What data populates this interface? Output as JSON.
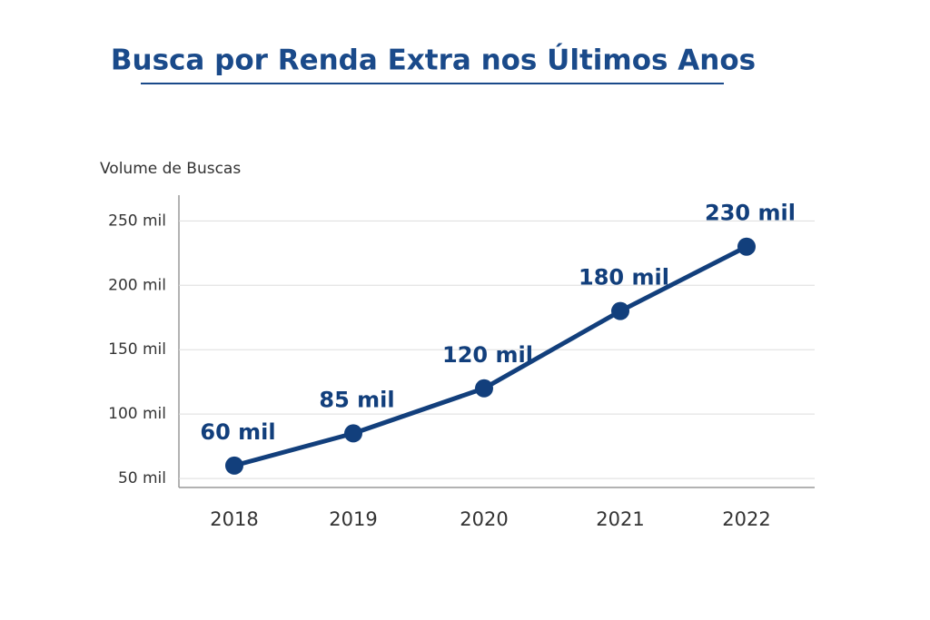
{
  "chart_data": {
    "type": "line",
    "title": "Busca por Renda Extra nos Últimos Anos",
    "y_label": "Volume de Buscas",
    "categories": [
      "2018",
      "2019",
      "2020",
      "2021",
      "2022"
    ],
    "series": [
      {
        "color": "#123f7c",
        "values": [
          60,
          85,
          120,
          180,
          230
        ],
        "value_labels": [
          "60 mil",
          "85 mil",
          "120 mil",
          "180 mil",
          "230 mil"
        ]
      }
    ],
    "ylim": [
      43,
      270
    ],
    "yticks": [
      {
        "value": 50,
        "label": "50 mil"
      },
      {
        "value": 100,
        "label": "100 mil"
      },
      {
        "value": 150,
        "label": "150 mil"
      },
      {
        "value": 200,
        "label": "200 mil"
      },
      {
        "value": 250,
        "label": "250 mil"
      }
    ],
    "grid": true
  }
}
